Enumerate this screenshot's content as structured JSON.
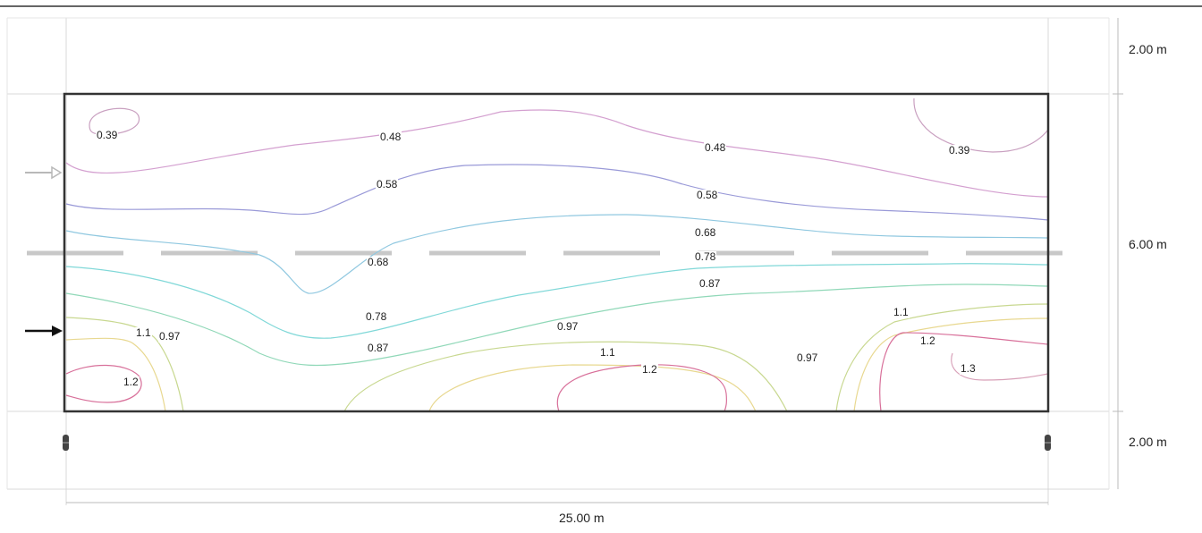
{
  "dimensions": {
    "top_margin": "2.00 m",
    "field_height": "6.00 m",
    "bottom_margin": "2.00 m",
    "field_length": "25.00 m"
  },
  "isolines": {
    "labels": [
      "0.39",
      "0.48",
      "0.48",
      "0.39",
      "0.58",
      "0.58",
      "0.68",
      "0.68",
      "0.78",
      "0.87",
      "0.78",
      "1.1",
      "0.97",
      "0.97",
      "0.87",
      "1.1",
      "1.2",
      "0.97",
      "1.1",
      "1.2",
      "1.2",
      "1.3"
    ]
  },
  "colors": {
    "frame": "#333333",
    "iso_039": "#c9a0c0",
    "iso_048": "#d4a0d0",
    "iso_058": "#9a9ad8",
    "iso_068": "#90c8e0",
    "iso_078": "#80d8d8",
    "iso_087": "#90d8b8",
    "iso_097": "#c8d890",
    "iso_11": "#e8d890",
    "iso_12": "#d8709a"
  }
}
